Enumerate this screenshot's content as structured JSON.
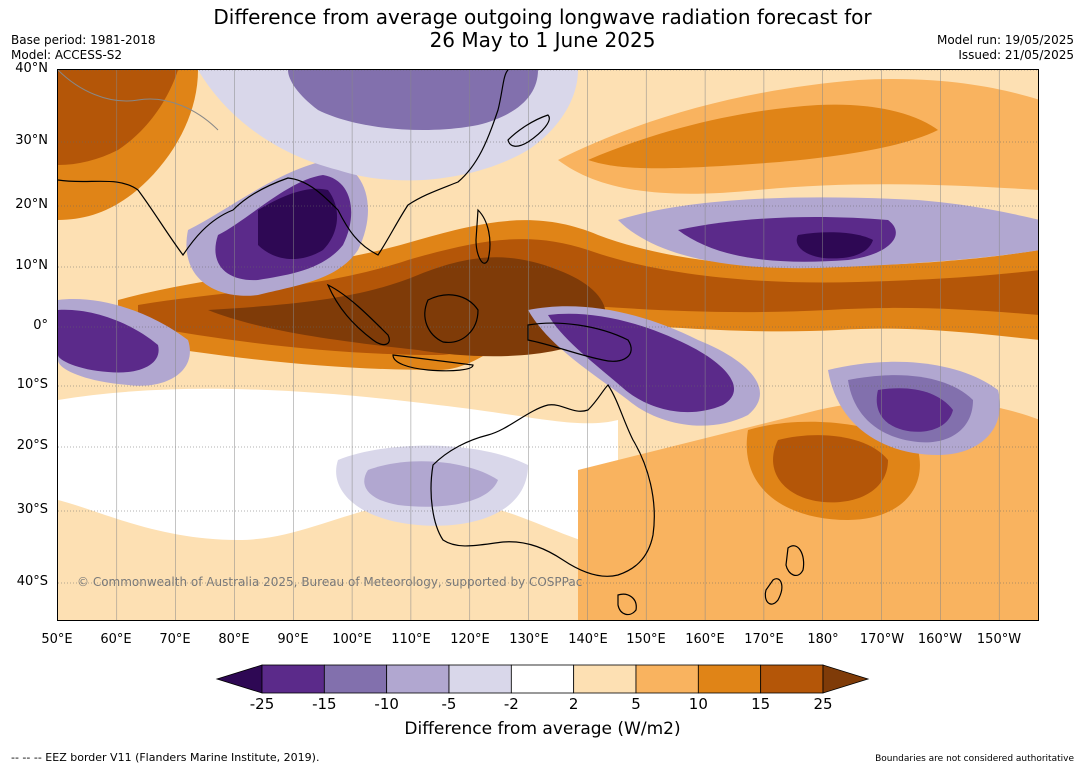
{
  "header": {
    "title_line1": "Difference from average outgoing longwave radiation forecast for",
    "title_line2": "26 May to 1 June 2025",
    "base_period": "Base period: 1981-2018",
    "model": "Model: ACCESS-S2",
    "model_run": "Model run: 19/05/2025",
    "issued": "Issued: 21/05/2025"
  },
  "map": {
    "lat_labels": [
      "40°N",
      "30°N",
      "20°N",
      "10°N",
      "0°",
      "10°S",
      "20°S",
      "30°S",
      "40°S"
    ],
    "lon_labels": [
      "50°E",
      "60°E",
      "70°E",
      "80°E",
      "90°E",
      "100°E",
      "110°E",
      "120°E",
      "130°E",
      "140°E",
      "150°E",
      "160°E",
      "170°E",
      "180°",
      "170°W",
      "160°W",
      "150°W"
    ],
    "copyright": "© Commonwealth of Australia 2025, Bureau of Meteorology, supported by COSPPac"
  },
  "colorbar": {
    "label": "Difference from average (W/m2)",
    "ticks": [
      "-25",
      "-15",
      "-10",
      "-5",
      "-2",
      "2",
      "5",
      "10",
      "15",
      "25"
    ],
    "colors": [
      "#2e0854",
      "#5b2a8a",
      "#8270ad",
      "#b1a7d0",
      "#d9d7ea",
      "#ffffff",
      "#fde0b3",
      "#f9b35f",
      "#e08417",
      "#b45608",
      "#7f3b08"
    ]
  },
  "footer": {
    "eez_note": "--  --  -- EEZ border V11 (Flanders Marine Institute, 2019).",
    "boundaries_note": "Boundaries are not considered authoritative"
  }
}
